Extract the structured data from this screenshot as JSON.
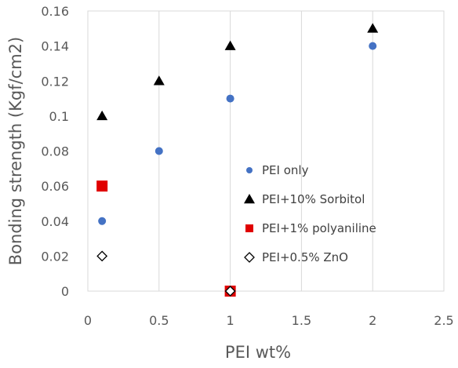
{
  "chart_data": {
    "type": "scatter",
    "title": "",
    "xlabel": "PEI wt%",
    "ylabel": "Bonding strength (Kgf/cm2)",
    "xlim": [
      0,
      2.5
    ],
    "ylim": [
      0,
      0.16
    ],
    "x_ticks": [
      "0",
      "0.5",
      "1",
      "1.5",
      "2",
      "2.5"
    ],
    "y_ticks": [
      "0",
      "0.02",
      "0.04",
      "0.06",
      "0.08",
      "0.1",
      "0.12",
      "0.14",
      "0.16"
    ],
    "grid": "vertical",
    "legend_position": "inside-right",
    "series": [
      {
        "name": "PEI only",
        "marker": "circle",
        "color": "#4472c4",
        "points": [
          [
            0.1,
            0.04
          ],
          [
            0.5,
            0.08
          ],
          [
            1,
            0.11
          ],
          [
            2,
            0.14
          ]
        ]
      },
      {
        "name": "PEI+10% Sorbitol",
        "marker": "triangle",
        "color": "#000000",
        "points": [
          [
            0.1,
            0.1
          ],
          [
            0.5,
            0.12
          ],
          [
            1,
            0.14
          ],
          [
            2,
            0.15
          ]
        ]
      },
      {
        "name": "PEI+1% polyaniline",
        "marker": "square",
        "color": "#e00000",
        "points": [
          [
            0.1,
            0.06
          ],
          [
            1,
            0
          ]
        ]
      },
      {
        "name": "PEI+0.5% ZnO",
        "marker": "diamond-open",
        "color": "#000000",
        "points": [
          [
            0.1,
            0.02
          ],
          [
            1,
            0
          ]
        ]
      }
    ]
  }
}
